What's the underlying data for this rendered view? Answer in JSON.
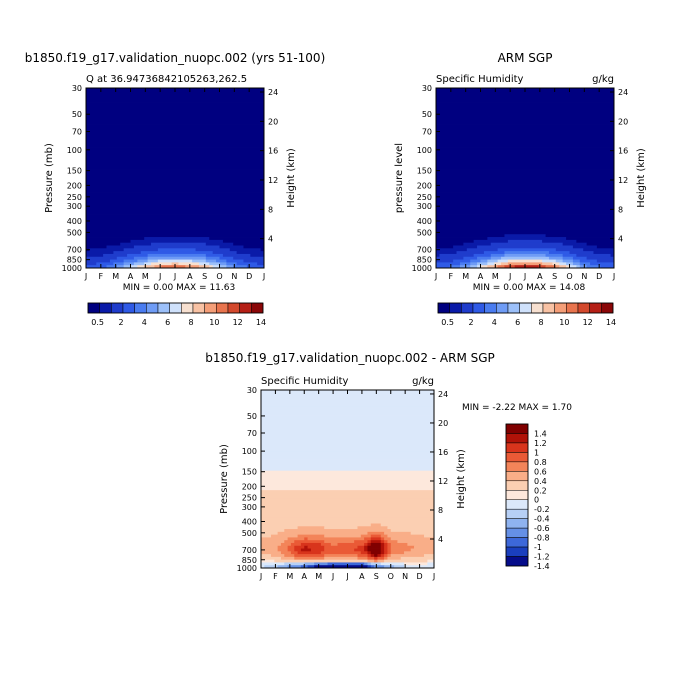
{
  "chart_data": [
    {
      "type": "heatmap",
      "title": "b1850.f19_g17.validation_nuopc.002 (yrs 51-100)",
      "left_label": "Q at 36.94736842105263,262.5",
      "right_label": "",
      "ylabel": "Pressure (mb)",
      "ylabel_right": "Height (km)",
      "x_categories": [
        "J",
        "F",
        "M",
        "A",
        "M",
        "J",
        "J",
        "A",
        "S",
        "O",
        "N",
        "D",
        "J"
      ],
      "y_levels": [
        30,
        50,
        70,
        100,
        150,
        200,
        250,
        300,
        400,
        500,
        700,
        850,
        1000
      ],
      "y_level_labels": [
        "30",
        "50",
        "70",
        "100",
        "150",
        "200",
        "250",
        "300",
        "400",
        "500",
        "700",
        "850",
        "1000"
      ],
      "height_km_ticks": [
        "4",
        "8",
        "12",
        "16",
        "20",
        "24"
      ],
      "min_max_text": "MIN =    0.00 MAX =   11.63",
      "colorbar_labels": [
        "0.5",
        "2",
        "4",
        "6",
        "8",
        "10",
        "12",
        "14"
      ],
      "units": "g/kg",
      "monthly_sfc_max": [
        2.6,
        3.0,
        4.4,
        6.5,
        9.0,
        11.3,
        11.63,
        11.2,
        9.6,
        7.0,
        4.4,
        3.1,
        2.6
      ]
    },
    {
      "type": "heatmap",
      "title": "ARM SGP",
      "left_label": "Specific Humidity",
      "right_label": "g/kg",
      "ylabel": "pressure level",
      "ylabel_right": "Height (km)",
      "x_categories": [
        "J",
        "F",
        "M",
        "A",
        "M",
        "J",
        "J",
        "A",
        "S",
        "O",
        "N",
        "D",
        "J"
      ],
      "y_levels": [
        30,
        50,
        70,
        100,
        150,
        200,
        250,
        300,
        400,
        500,
        700,
        850,
        1000
      ],
      "y_level_labels": [
        "30",
        "50",
        "70",
        "100",
        "150",
        "200",
        "250",
        "300",
        "400",
        "500",
        "700",
        "850",
        "1000"
      ],
      "height_km_ticks": [
        "4",
        "8",
        "12",
        "16",
        "20",
        "24"
      ],
      "min_max_text": "MIN =    0.00 MAX =   14.08",
      "colorbar_labels": [
        "0.5",
        "2",
        "4",
        "6",
        "8",
        "10",
        "12",
        "14"
      ],
      "units": "g/kg",
      "monthly_sfc_max": [
        3.0,
        3.4,
        5.0,
        7.6,
        10.6,
        13.4,
        14.08,
        13.6,
        11.2,
        8.0,
        4.9,
        3.4,
        3.0
      ]
    },
    {
      "type": "heatmap",
      "title": "b1850.f19_g17.validation_nuopc.002 - ARM SGP",
      "left_label": "Specific Humidity",
      "right_label": "g/kg",
      "ylabel": "Pressure (mb)",
      "ylabel_right": "Height (km)",
      "x_categories": [
        "J",
        "F",
        "M",
        "A",
        "M",
        "J",
        "J",
        "A",
        "S",
        "O",
        "N",
        "D",
        "J"
      ],
      "y_levels": [
        30,
        50,
        70,
        100,
        150,
        200,
        250,
        300,
        400,
        500,
        700,
        850,
        1000
      ],
      "y_level_labels": [
        "30",
        "50",
        "70",
        "100",
        "150",
        "200",
        "250",
        "300",
        "400",
        "500",
        "700",
        "850",
        "1000"
      ],
      "height_km_ticks": [
        "4",
        "8",
        "12",
        "16",
        "20",
        "24"
      ],
      "min_max_text": "MIN =   -2.22 MAX =    1.70",
      "colorbar_labels": [
        "1.4",
        "1.2",
        "1",
        "0.8",
        "0.6",
        "0.4",
        "0.2",
        "0",
        "-0.2",
        "-0.4",
        "-0.6",
        "-0.8",
        "-1",
        "-1.2",
        "-1.4"
      ],
      "units": "g/kg",
      "monthly_sfc_min": [
        -0.3,
        -0.5,
        -0.9,
        -1.2,
        -1.7,
        -2.1,
        -2.22,
        -2.0,
        -1.1,
        -0.7,
        -0.3,
        -0.2,
        -0.3
      ],
      "monthly_low_max": [
        0.3,
        0.4,
        0.7,
        1.1,
        1.0,
        0.7,
        0.8,
        0.9,
        1.7,
        0.6,
        0.5,
        0.4,
        0.3
      ]
    }
  ],
  "colors": {
    "background": "#ffffff",
    "q_scale": [
      "#000080",
      "#0a1aa8",
      "#1f3ccc",
      "#2f5ae6",
      "#4a7cf0",
      "#6f9cf5",
      "#9cc0f9",
      "#cfe1fb",
      "#f7e0d0",
      "#f8c2a4",
      "#f49e78",
      "#e8744e",
      "#d3492d",
      "#b51f16",
      "#8a0607"
    ],
    "diff_scale": [
      "#800000",
      "#b01208",
      "#d8341c",
      "#ea5a36",
      "#f38459",
      "#f9ae88",
      "#fbcfb2",
      "#fde8dc",
      "#dbe8fa",
      "#b7d0f6",
      "#8fb3f0",
      "#6590e6",
      "#3d68d9",
      "#1a3fbe",
      "#050c8a"
    ]
  }
}
